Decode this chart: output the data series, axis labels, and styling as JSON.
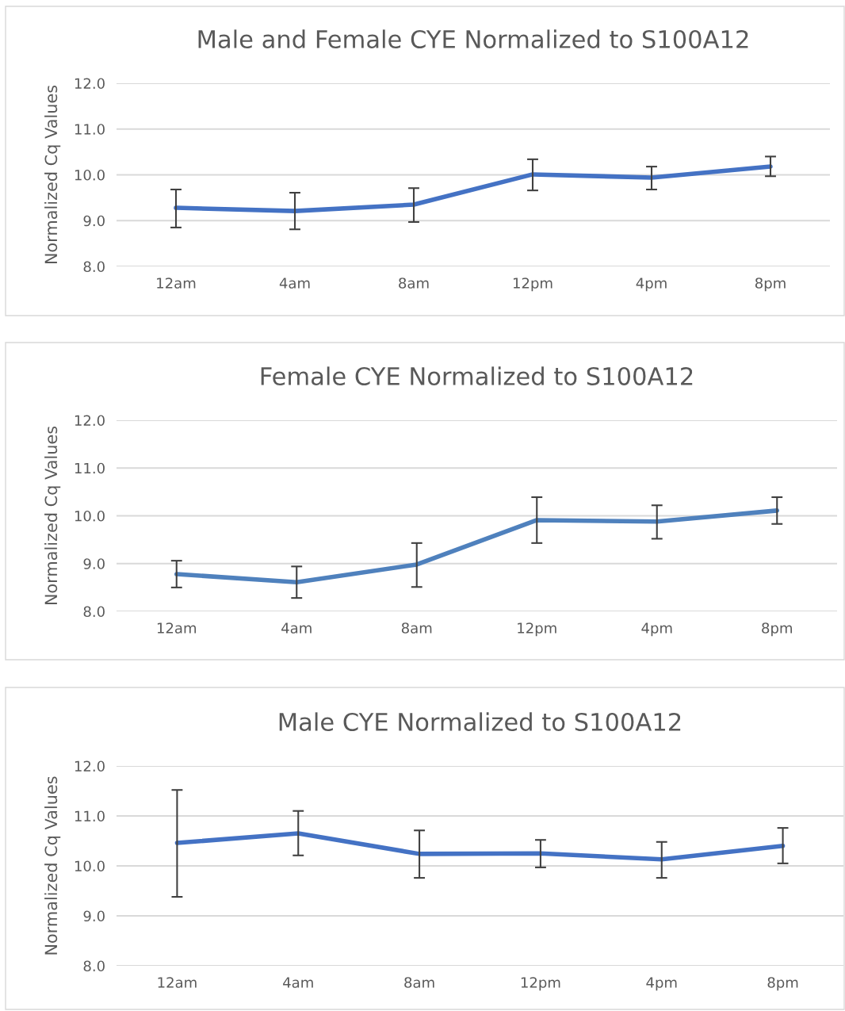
{
  "chart_data": [
    {
      "type": "line",
      "title": "Male and Female CYE Normalized to S100A12",
      "ylabel": "Normalized Cq Values",
      "categories": [
        "12am",
        "4am",
        "8am",
        "12pm",
        "4pm",
        "8pm"
      ],
      "series": [
        {
          "color": "#4472c4",
          "values": [
            9.28,
            9.21,
            9.35,
            10.01,
            9.94,
            10.18
          ],
          "errors": [
            [
              8.85,
              9.68
            ],
            [
              8.81,
              9.61
            ],
            [
              8.97,
              9.71
            ],
            [
              9.66,
              10.34
            ],
            [
              9.68,
              10.18
            ],
            [
              9.97,
              10.4
            ]
          ]
        }
      ],
      "ylim": [
        8,
        12
      ],
      "yticks": [
        {
          "value": 8,
          "label": "8.0"
        },
        {
          "value": 9,
          "label": "9.0"
        },
        {
          "value": 10,
          "label": "10.0"
        },
        {
          "value": 11,
          "label": "11.0"
        },
        {
          "value": 12,
          "label": "12.0"
        }
      ],
      "grid": "y",
      "legend": false,
      "marker": "none",
      "line_style": "solid"
    },
    {
      "type": "line",
      "title": "Female CYE Normalized to S100A12",
      "ylabel": "Normalized Cq Values",
      "categories": [
        "12am",
        "4am",
        "8am",
        "12pm",
        "4pm",
        "8pm"
      ],
      "series": [
        {
          "color": "#4f81bd",
          "values": [
            8.78,
            8.61,
            8.98,
            9.91,
            9.88,
            10.11
          ],
          "errors": [
            [
              8.5,
              9.06
            ],
            [
              8.28,
              8.94
            ],
            [
              8.51,
              9.43
            ],
            [
              9.43,
              10.39
            ],
            [
              9.52,
              10.22
            ],
            [
              9.83,
              10.39
            ]
          ]
        }
      ],
      "ylim": [
        8,
        12
      ],
      "yticks": [
        {
          "value": 8,
          "label": "8.0"
        },
        {
          "value": 9,
          "label": "9.0"
        },
        {
          "value": 10,
          "label": "10.0"
        },
        {
          "value": 11,
          "label": "11.0"
        },
        {
          "value": 12,
          "label": "12.0"
        }
      ],
      "grid": "y",
      "legend": false,
      "marker": "none",
      "line_style": "solid"
    },
    {
      "type": "line",
      "title": "Male CYE Normalized to S100A12",
      "ylabel": "Normalized Cq Values",
      "categories": [
        "12am",
        "4am",
        "8am",
        "12pm",
        "4pm",
        "8pm"
      ],
      "series": [
        {
          "color": "#4472c4",
          "values": [
            10.46,
            10.65,
            10.24,
            10.25,
            10.13,
            10.4
          ],
          "errors": [
            [
              9.38,
              11.52
            ],
            [
              10.21,
              11.1
            ],
            [
              9.76,
              10.71
            ],
            [
              9.97,
              10.52
            ],
            [
              9.76,
              10.48
            ],
            [
              10.05,
              10.76
            ]
          ]
        }
      ],
      "ylim": [
        8,
        12
      ],
      "yticks": [
        {
          "value": 8,
          "label": "8.0"
        },
        {
          "value": 9,
          "label": "9.0"
        },
        {
          "value": 10,
          "label": "10.0"
        },
        {
          "value": 11,
          "label": "11.0"
        },
        {
          "value": 12,
          "label": "12.0"
        }
      ],
      "grid": "y",
      "legend": false,
      "marker": "none",
      "line_style": "solid"
    }
  ]
}
